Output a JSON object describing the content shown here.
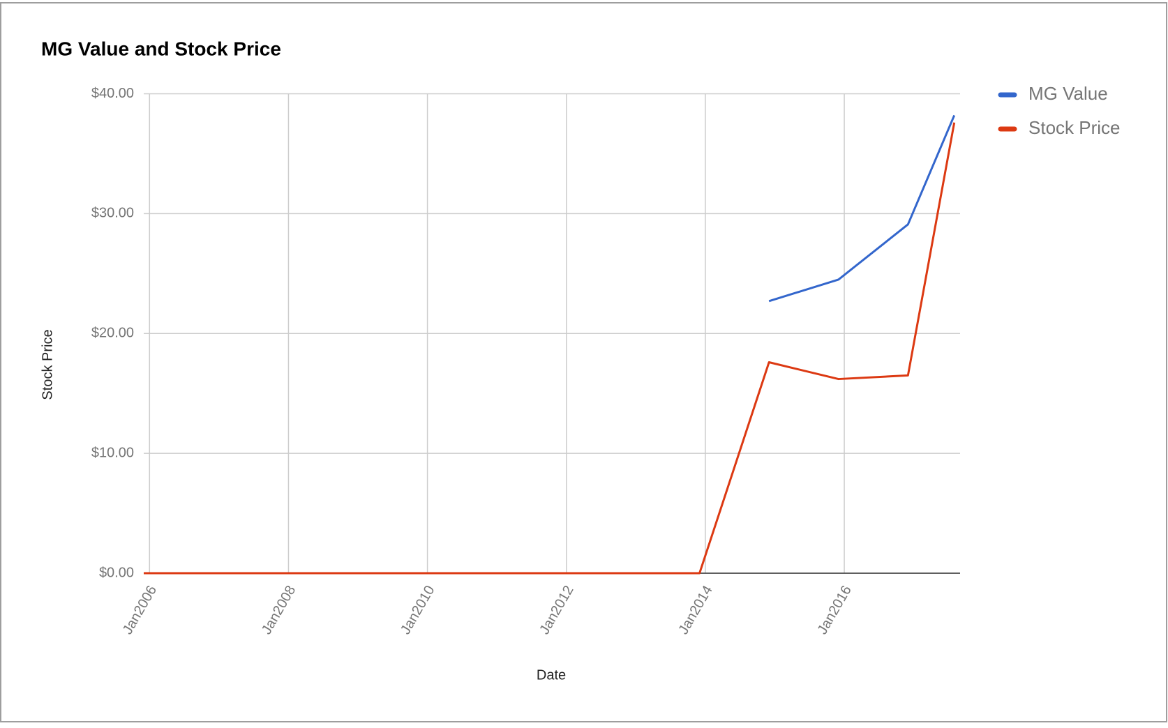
{
  "chart_data": {
    "type": "line",
    "title": "MG Value and Stock Price",
    "x_label": "Date",
    "y_label": "Stock Price",
    "x": [
      "2005-12",
      "2006-12",
      "2007-12",
      "2008-12",
      "2009-12",
      "2010-12",
      "2011-12",
      "2012-12",
      "2013-12",
      "2014-12",
      "2015-12",
      "2016-12",
      "2017-08"
    ],
    "series": [
      {
        "name": "MG Value",
        "color": "#3366cc",
        "values": [
          null,
          null,
          null,
          null,
          null,
          null,
          null,
          null,
          null,
          22.7,
          24.5,
          29.1,
          38.2
        ]
      },
      {
        "name": "Stock Price",
        "color": "#dc3912",
        "values": [
          0,
          0,
          0,
          0,
          0,
          0,
          0,
          0,
          0,
          17.6,
          16.2,
          16.5,
          37.6
        ]
      }
    ],
    "xlim": [
      "2005-12",
      "2017-09"
    ],
    "xticks": [
      {
        "value": "2006-01",
        "label": "Jan2006"
      },
      {
        "value": "2008-01",
        "label": "Jan2008"
      },
      {
        "value": "2010-01",
        "label": "Jan2010"
      },
      {
        "value": "2012-01",
        "label": "Jan2012"
      },
      {
        "value": "2014-01",
        "label": "Jan2014"
      },
      {
        "value": "2016-01",
        "label": "Jan2016"
      }
    ],
    "ylim": [
      0,
      40
    ],
    "yticks": [
      {
        "value": 0,
        "label": "$0.00"
      },
      {
        "value": 10,
        "label": "$10.00"
      },
      {
        "value": 20,
        "label": "$20.00"
      },
      {
        "value": 30,
        "label": "$30.00"
      },
      {
        "value": 40,
        "label": "$40.00"
      }
    ],
    "grid": true,
    "legend": "right"
  }
}
